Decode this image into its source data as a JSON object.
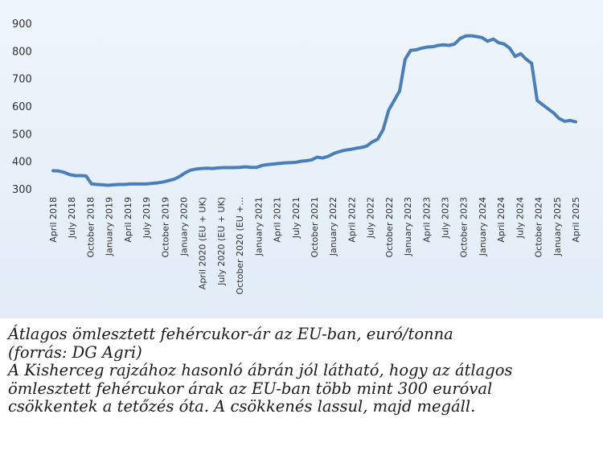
{
  "chart_data": {
    "type": "line",
    "title": "",
    "xlabel": "",
    "ylabel": "",
    "ylim": [
      300,
      900
    ],
    "yticks": [
      "900",
      "800",
      "700",
      "600",
      "500",
      "400",
      "300"
    ],
    "grid": false,
    "legend": "none",
    "color": "#4a7ebb",
    "x_tick_labels": [
      "April 2018",
      "July 2018",
      "October 2018",
      "January 2019",
      "April 2019",
      "July 2019",
      "October 2019",
      "January 2020",
      "April 2020 (EU + UK)",
      "July 2020 (EU + UK)",
      "October 2020 (EU +...",
      "January 2021",
      "April 2021",
      "July 2021",
      "October 2021",
      "January 2022",
      "April 2022",
      "July 2022",
      "October 2022",
      "January 2023",
      "April 2023",
      "July 2023",
      "October 2023",
      "January 2024",
      "April 2024",
      "July 2024",
      "October 2024",
      "January 2025",
      "April 2025"
    ],
    "series": [
      {
        "values": [
          366,
          365,
          360,
          352,
          348,
          348,
          347,
          318,
          316,
          315,
          313,
          315,
          316,
          316,
          318,
          318,
          318,
          318,
          320,
          322,
          325,
          330,
          335,
          345,
          358,
          368,
          372,
          374,
          375,
          374,
          376,
          377,
          377,
          377,
          378,
          380,
          378,
          378,
          385,
          388,
          390,
          392,
          394,
          395,
          396,
          400,
          402,
          405,
          415,
          412,
          418,
          428,
          435,
          440,
          443,
          447,
          450,
          455,
          470,
          480,
          515,
          585,
          620,
          655,
          770,
          802,
          804,
          810,
          814,
          815,
          820,
          822,
          820,
          825,
          845,
          854,
          855,
          852,
          848,
          835,
          843,
          830,
          825,
          810,
          780,
          790,
          770,
          755,
          620,
          605,
          590,
          575,
          555,
          545,
          548,
          543
        ]
      }
    ]
  },
  "caption": {
    "title_line1": "Átlagos ömlesztett fehércukor-ár az EU-ban, euró/tonna",
    "title_line2": "(forrás: DG Agri)",
    "text_line1": "A Kisherceg rajzához hasonló ábrán jól látható, hogy az átlagos",
    "text_line2": "ömlesztett fehércukor árak az EU-ban több mint 300 euróval",
    "text_line3": "csökkentek a tetőzés óta. A csökkenés lassul, majd megáll."
  }
}
